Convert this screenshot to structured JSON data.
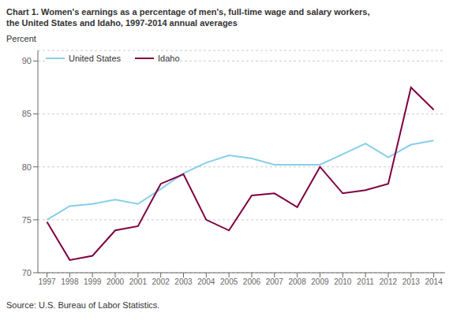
{
  "chart_data": {
    "type": "line",
    "title": "Chart 1. Women's earnings as a percentage of men's, full-time wage and salary workers,",
    "subtitle": "the United States and Idaho, 1997-2014  annual averages",
    "ylabel": "Percent",
    "annotations": [
      "Source: U.S.  Bureau of Labor Statistics."
    ],
    "x": [
      1997,
      1998,
      1999,
      2000,
      2001,
      2002,
      2003,
      2004,
      2005,
      2006,
      2007,
      2008,
      2009,
      2010,
      2011,
      2012,
      2013,
      2014
    ],
    "series": [
      {
        "name": "United States",
        "color": "#87CEEB",
        "values": [
          75.0,
          76.3,
          76.5,
          76.9,
          76.5,
          77.9,
          79.4,
          80.4,
          81.1,
          80.8,
          80.2,
          80.2,
          80.2,
          81.2,
          82.2,
          80.9,
          82.1,
          82.5
        ]
      },
      {
        "name": "Idaho",
        "color": "#800040",
        "values": [
          74.8,
          71.2,
          71.6,
          74.0,
          74.4,
          78.4,
          79.3,
          75.0,
          74.0,
          77.3,
          77.5,
          76.2,
          80.0,
          77.5,
          77.8,
          78.4,
          87.5,
          85.4
        ]
      }
    ],
    "xlim": [
      1996.6,
      2014.5
    ],
    "xticks": [
      1997,
      1998,
      1999,
      2000,
      2001,
      2002,
      2003,
      2004,
      2005,
      2006,
      2007,
      2008,
      2009,
      2010,
      2011,
      2012,
      2013,
      2014
    ],
    "ylim": [
      70,
      91
    ],
    "yticks": [
      70,
      75,
      80,
      85,
      90
    ],
    "grid": "y",
    "legend": "upper left"
  }
}
